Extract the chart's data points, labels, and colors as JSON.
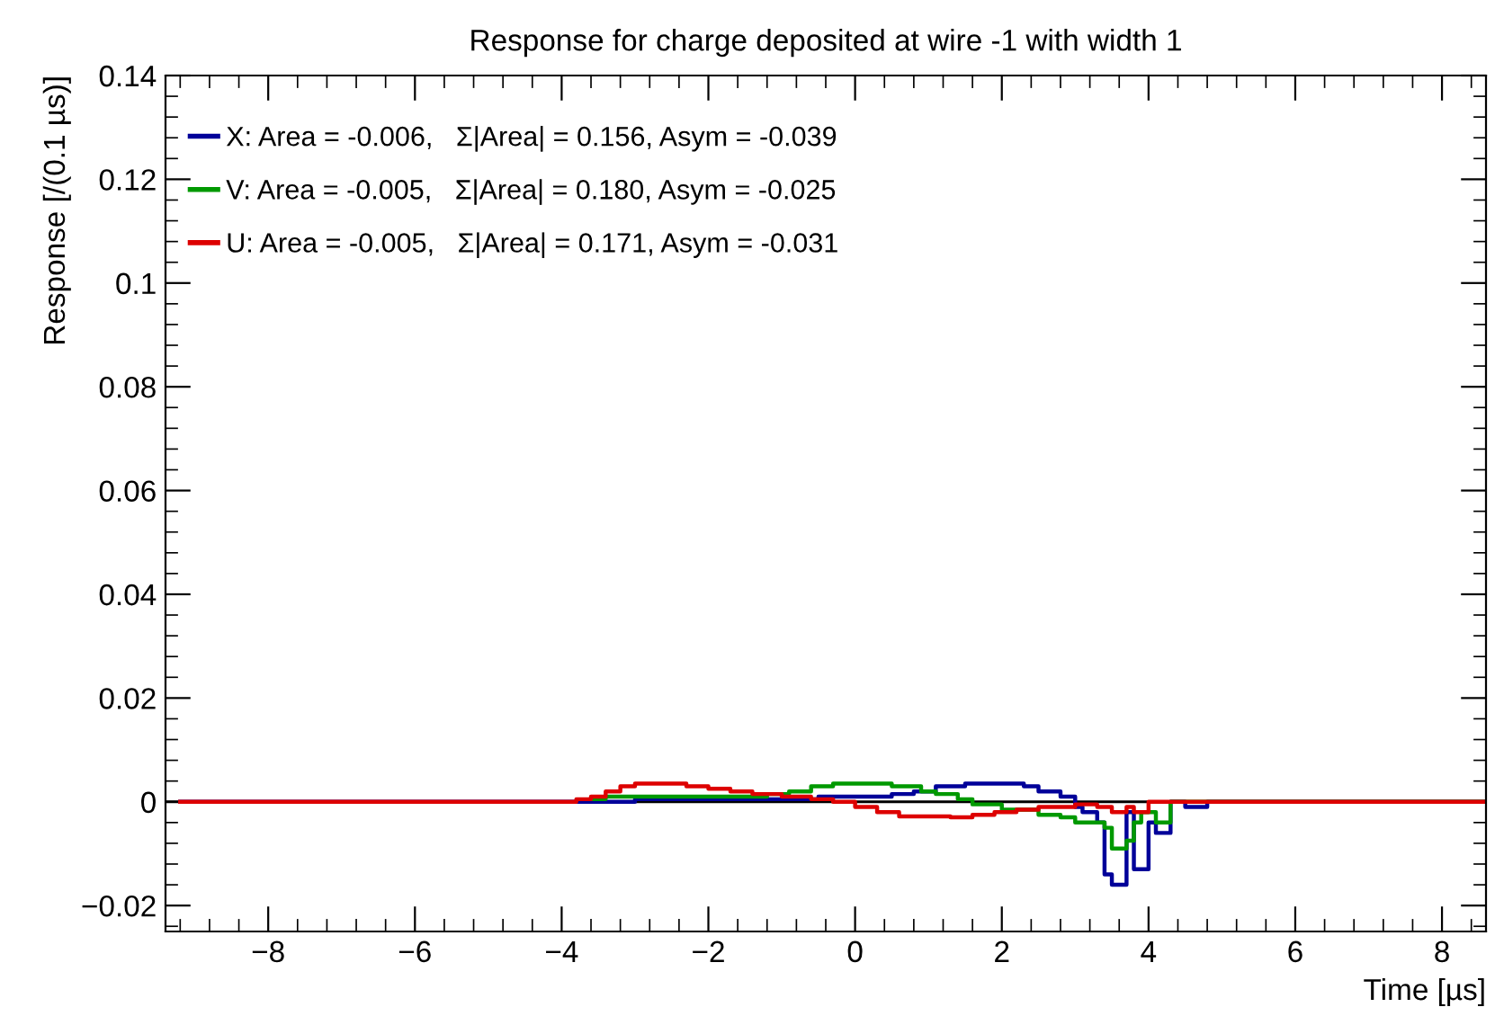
{
  "chart_data": {
    "type": "step",
    "title": "Response for charge deposited at wire -1 with width 1",
    "xlabel": "Time [µs]",
    "ylabel": "Response [/(0.1 µs)]",
    "xlim": [
      -9.4,
      8.6
    ],
    "ylim": [
      -0.025,
      0.14
    ],
    "xticks": [
      {
        "value": -8,
        "label": "−8"
      },
      {
        "value": -6,
        "label": "−6"
      },
      {
        "value": -4,
        "label": "−4"
      },
      {
        "value": -2,
        "label": "−2"
      },
      0,
      2,
      4,
      6,
      8
    ],
    "yticks": [
      {
        "value": -0.02,
        "label": "−0.02"
      },
      0,
      0.02,
      0.04,
      0.06,
      0.08,
      0.1,
      0.12,
      0.14
    ],
    "grid": false,
    "legend": "top left",
    "line_style": "solid",
    "marker": "none",
    "ref_lines": [
      {
        "axis": "y",
        "value": 0,
        "color": "#000000"
      }
    ],
    "series": [
      {
        "name": "X: Area = -0.006,   Σ|Area| = 0.156, Asym = -0.039",
        "color": "#000099",
        "x": [
          -9.2,
          -3.0,
          -0.5,
          0.5,
          0.8,
          1.1,
          1.5,
          1.8,
          2.3,
          2.5,
          2.8,
          3.0,
          3.1,
          3.3,
          3.4,
          3.5,
          3.6,
          3.7,
          3.8,
          3.9,
          4.0,
          4.1,
          4.2,
          4.3,
          4.5,
          4.7,
          4.8,
          8.6
        ],
        "values": [
          0,
          0.0005,
          0.001,
          0.0015,
          0.002,
          0.003,
          0.0035,
          0.0035,
          0.003,
          0.002,
          0.001,
          -0.001,
          -0.002,
          -0.004,
          -0.014,
          -0.016,
          -0.016,
          -0.002,
          -0.013,
          -0.013,
          -0.004,
          -0.006,
          -0.006,
          0,
          -0.001,
          -0.001,
          0,
          0
        ]
      },
      {
        "name": "V: Area = -0.005,   Σ|Area| = 0.180, Asym = -0.025",
        "color": "#009900",
        "x": [
          -3.6,
          -3.4,
          -3.0,
          -1.2,
          -0.9,
          -0.6,
          -0.3,
          0.5,
          0.9,
          1.1,
          1.4,
          1.6,
          2.0,
          2.5,
          2.8,
          3.0,
          3.4,
          3.5,
          3.7,
          3.8,
          3.9,
          4.1,
          4.3,
          8.6
        ],
        "values": [
          0.0005,
          0.001,
          0.001,
          0.0015,
          0.002,
          0.003,
          0.0035,
          0.003,
          0.002,
          0.0015,
          0.0005,
          -0.0005,
          -0.0015,
          -0.0025,
          -0.003,
          -0.004,
          -0.005,
          -0.009,
          -0.0075,
          -0.004,
          -0.002,
          -0.004,
          0,
          0
        ]
      },
      {
        "name": "U: Area = -0.005,   Σ|Area| = 0.171, Asym = -0.031",
        "color": "#dd0000",
        "x": [
          -9.2,
          -3.8,
          -3.6,
          -3.4,
          -3.2,
          -3.0,
          -2.3,
          -2.0,
          -1.7,
          -1.4,
          -1.0,
          -0.6,
          -0.3,
          0.0,
          0.3,
          0.6,
          1.3,
          1.6,
          1.9,
          2.2,
          2.5,
          3.0,
          3.3,
          3.5,
          3.7,
          3.8,
          4.0,
          8.6
        ],
        "values": [
          0,
          0.0005,
          0.001,
          0.002,
          0.003,
          0.0035,
          0.003,
          0.0025,
          0.002,
          0.0015,
          0.001,
          0.0005,
          0,
          -0.001,
          -0.002,
          -0.0028,
          -0.003,
          -0.0025,
          -0.002,
          -0.0015,
          -0.001,
          -0.0005,
          -0.001,
          -0.002,
          -0.001,
          -0.002,
          0,
          0
        ]
      }
    ]
  }
}
